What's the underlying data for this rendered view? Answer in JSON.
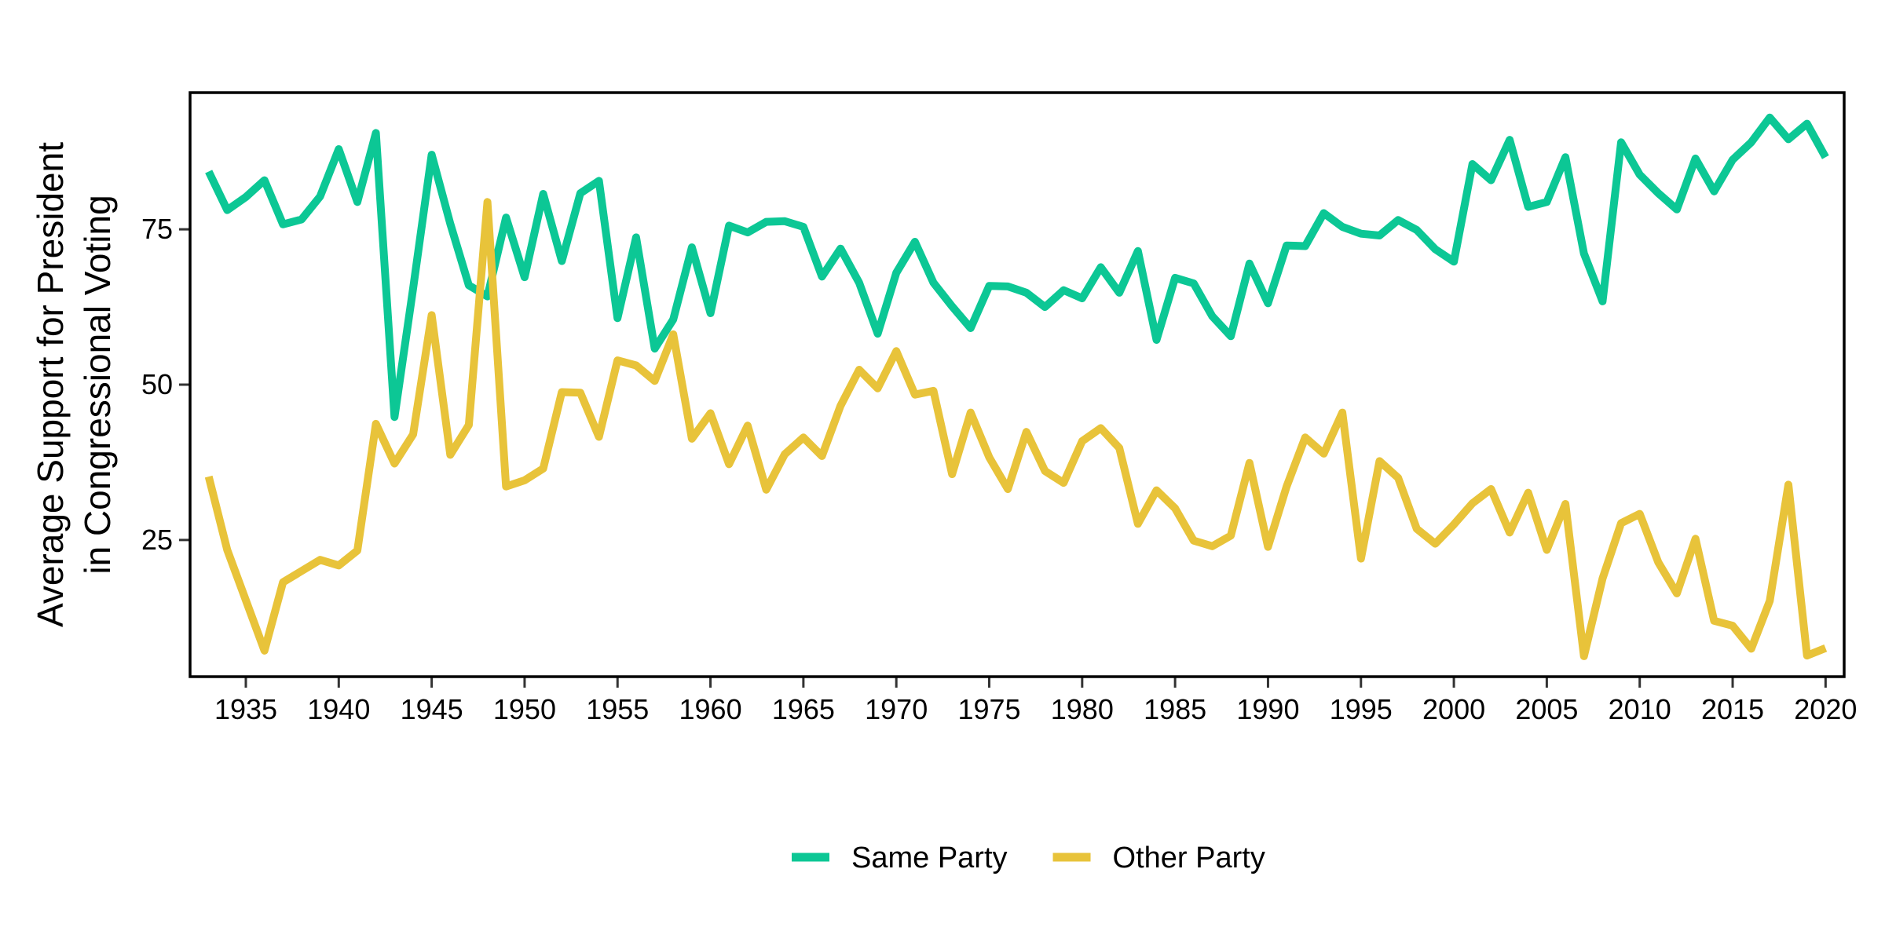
{
  "chart_data": {
    "type": "line",
    "ylabel_lines": [
      "Average Support for President",
      "in Congressional Voting"
    ],
    "xlabel": "",
    "xlim": [
      1932,
      2021
    ],
    "ylim": [
      3,
      97
    ],
    "x_ticks": [
      "1935",
      "1940",
      "1945",
      "1950",
      "1955",
      "1960",
      "1965",
      "1970",
      "1975",
      "1980",
      "1985",
      "1990",
      "1995",
      "2000",
      "2005",
      "2010",
      "2015",
      "2020"
    ],
    "y_ticks": [
      "25",
      "50",
      "75"
    ],
    "grid": false,
    "legend_position": "bottom",
    "x": [
      1933,
      1934,
      1935,
      1936,
      1937,
      1938,
      1939,
      1940,
      1941,
      1942,
      1943,
      1944,
      1945,
      1946,
      1947,
      1948,
      1949,
      1950,
      1951,
      1952,
      1953,
      1954,
      1955,
      1956,
      1957,
      1958,
      1959,
      1960,
      1961,
      1962,
      1963,
      1964,
      1965,
      1966,
      1967,
      1968,
      1969,
      1970,
      1971,
      1972,
      1973,
      1974,
      1975,
      1976,
      1977,
      1978,
      1979,
      1980,
      1981,
      1982,
      1983,
      1984,
      1985,
      1986,
      1987,
      1988,
      1989,
      1990,
      1991,
      1992,
      1993,
      1994,
      1995,
      1996,
      1997,
      1998,
      1999,
      2000,
      2001,
      2002,
      2003,
      2004,
      2005,
      2006,
      2007,
      2008,
      2009,
      2010,
      2011,
      2012,
      2013,
      2014,
      2015,
      2016,
      2017,
      2018,
      2019,
      2020
    ],
    "series": [
      {
        "name": "Same Party",
        "color": "#0cc795",
        "values": [
          84.3,
          78.1,
          80.2,
          82.9,
          75.8,
          76.6,
          80.3,
          87.9,
          79.4,
          90.5,
          44.8,
          65.5,
          87.0,
          75.9,
          66.0,
          64.2,
          76.9,
          67.3,
          80.7,
          69.9,
          80.8,
          82.8,
          60.7,
          73.7,
          55.8,
          60.5,
          72.1,
          61.5,
          75.6,
          74.5,
          76.2,
          76.3,
          75.4,
          67.4,
          71.9,
          66.4,
          58.2,
          68.0,
          73.0,
          66.4,
          62.6,
          59.1,
          65.9,
          65.8,
          64.8,
          62.5,
          65.2,
          63.9,
          68.9,
          64.8,
          71.5,
          57.2,
          67.2,
          66.3,
          61.0,
          57.8,
          69.5,
          63.1,
          72.4,
          72.3,
          77.6,
          75.4,
          74.3,
          74.0,
          76.5,
          74.9,
          71.8,
          69.8,
          85.5,
          82.9,
          89.4,
          78.6,
          79.4,
          86.6,
          71.1,
          63.4,
          89.0,
          83.8,
          80.8,
          78.2,
          86.4,
          81.1,
          86.2,
          89.0,
          93.0,
          89.5,
          92.0,
          86.6
        ]
      },
      {
        "name": "Other Party",
        "color": "#e8c33a",
        "values": [
          35.2,
          23.4,
          15.3,
          7.2,
          18.2,
          20.0,
          21.8,
          20.9,
          23.3,
          43.7,
          37.3,
          42.0,
          61.2,
          38.7,
          43.5,
          79.4,
          33.6,
          34.6,
          36.5,
          48.8,
          48.7,
          41.6,
          53.9,
          53.1,
          50.6,
          58.1,
          41.3,
          45.4,
          37.2,
          43.4,
          33.1,
          38.8,
          41.5,
          38.5,
          46.6,
          52.4,
          49.4,
          55.4,
          48.4,
          49.0,
          35.6,
          45.5,
          38.3,
          33.2,
          42.4,
          36.1,
          34.2,
          40.9,
          43.0,
          39.8,
          27.6,
          33.0,
          30.1,
          24.9,
          24.0,
          25.7,
          37.4,
          23.9,
          33.6,
          41.5,
          38.9,
          45.5,
          22.0,
          37.7,
          35.0,
          26.8,
          24.4,
          27.5,
          30.9,
          33.2,
          26.2,
          32.6,
          23.4,
          30.8,
          6.3,
          18.8,
          27.7,
          29.2,
          21.4,
          16.4,
          25.2,
          12.0,
          11.2,
          7.5,
          15.2,
          33.9,
          6.4,
          7.6
        ]
      }
    ]
  }
}
